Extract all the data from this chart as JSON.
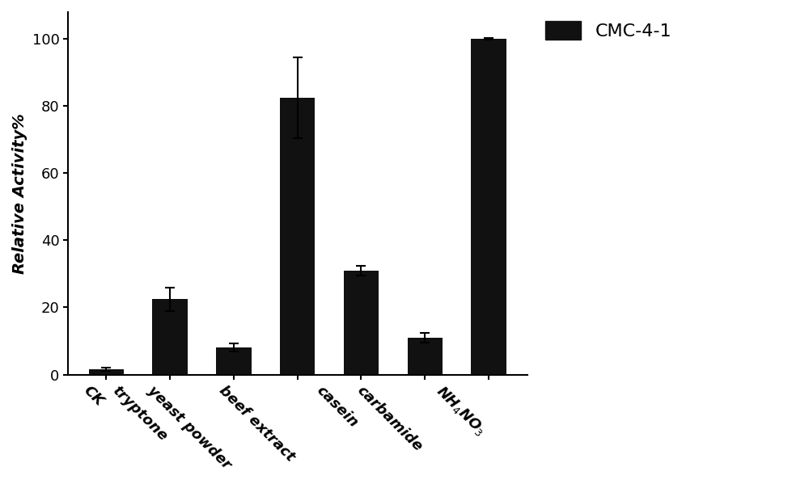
{
  "categories": [
    "CK",
    "tryptone",
    "yeast powder",
    "beef extract",
    "casein",
    "carbamide",
    "NH$_4$NO$_3$"
  ],
  "values": [
    1.5,
    22.5,
    8.0,
    82.5,
    31.0,
    11.0,
    100.0
  ],
  "errors": [
    0.5,
    3.5,
    1.2,
    12.0,
    1.5,
    1.5,
    0.3
  ],
  "bar_color": "#111111",
  "bar_width": 0.55,
  "ylabel": "Relative Activity%",
  "ylim": [
    0,
    108
  ],
  "yticks": [
    0,
    20,
    40,
    60,
    80,
    100
  ],
  "legend_label": "CMC-4-1",
  "legend_color": "#111111",
  "figsize": [
    10.0,
    5.99
  ],
  "dpi": 100,
  "background_color": "#ffffff",
  "tick_label_rotation": -45,
  "tick_label_ha": "right",
  "ylabel_fontsize": 14,
  "tick_fontsize": 13,
  "legend_fontsize": 16
}
